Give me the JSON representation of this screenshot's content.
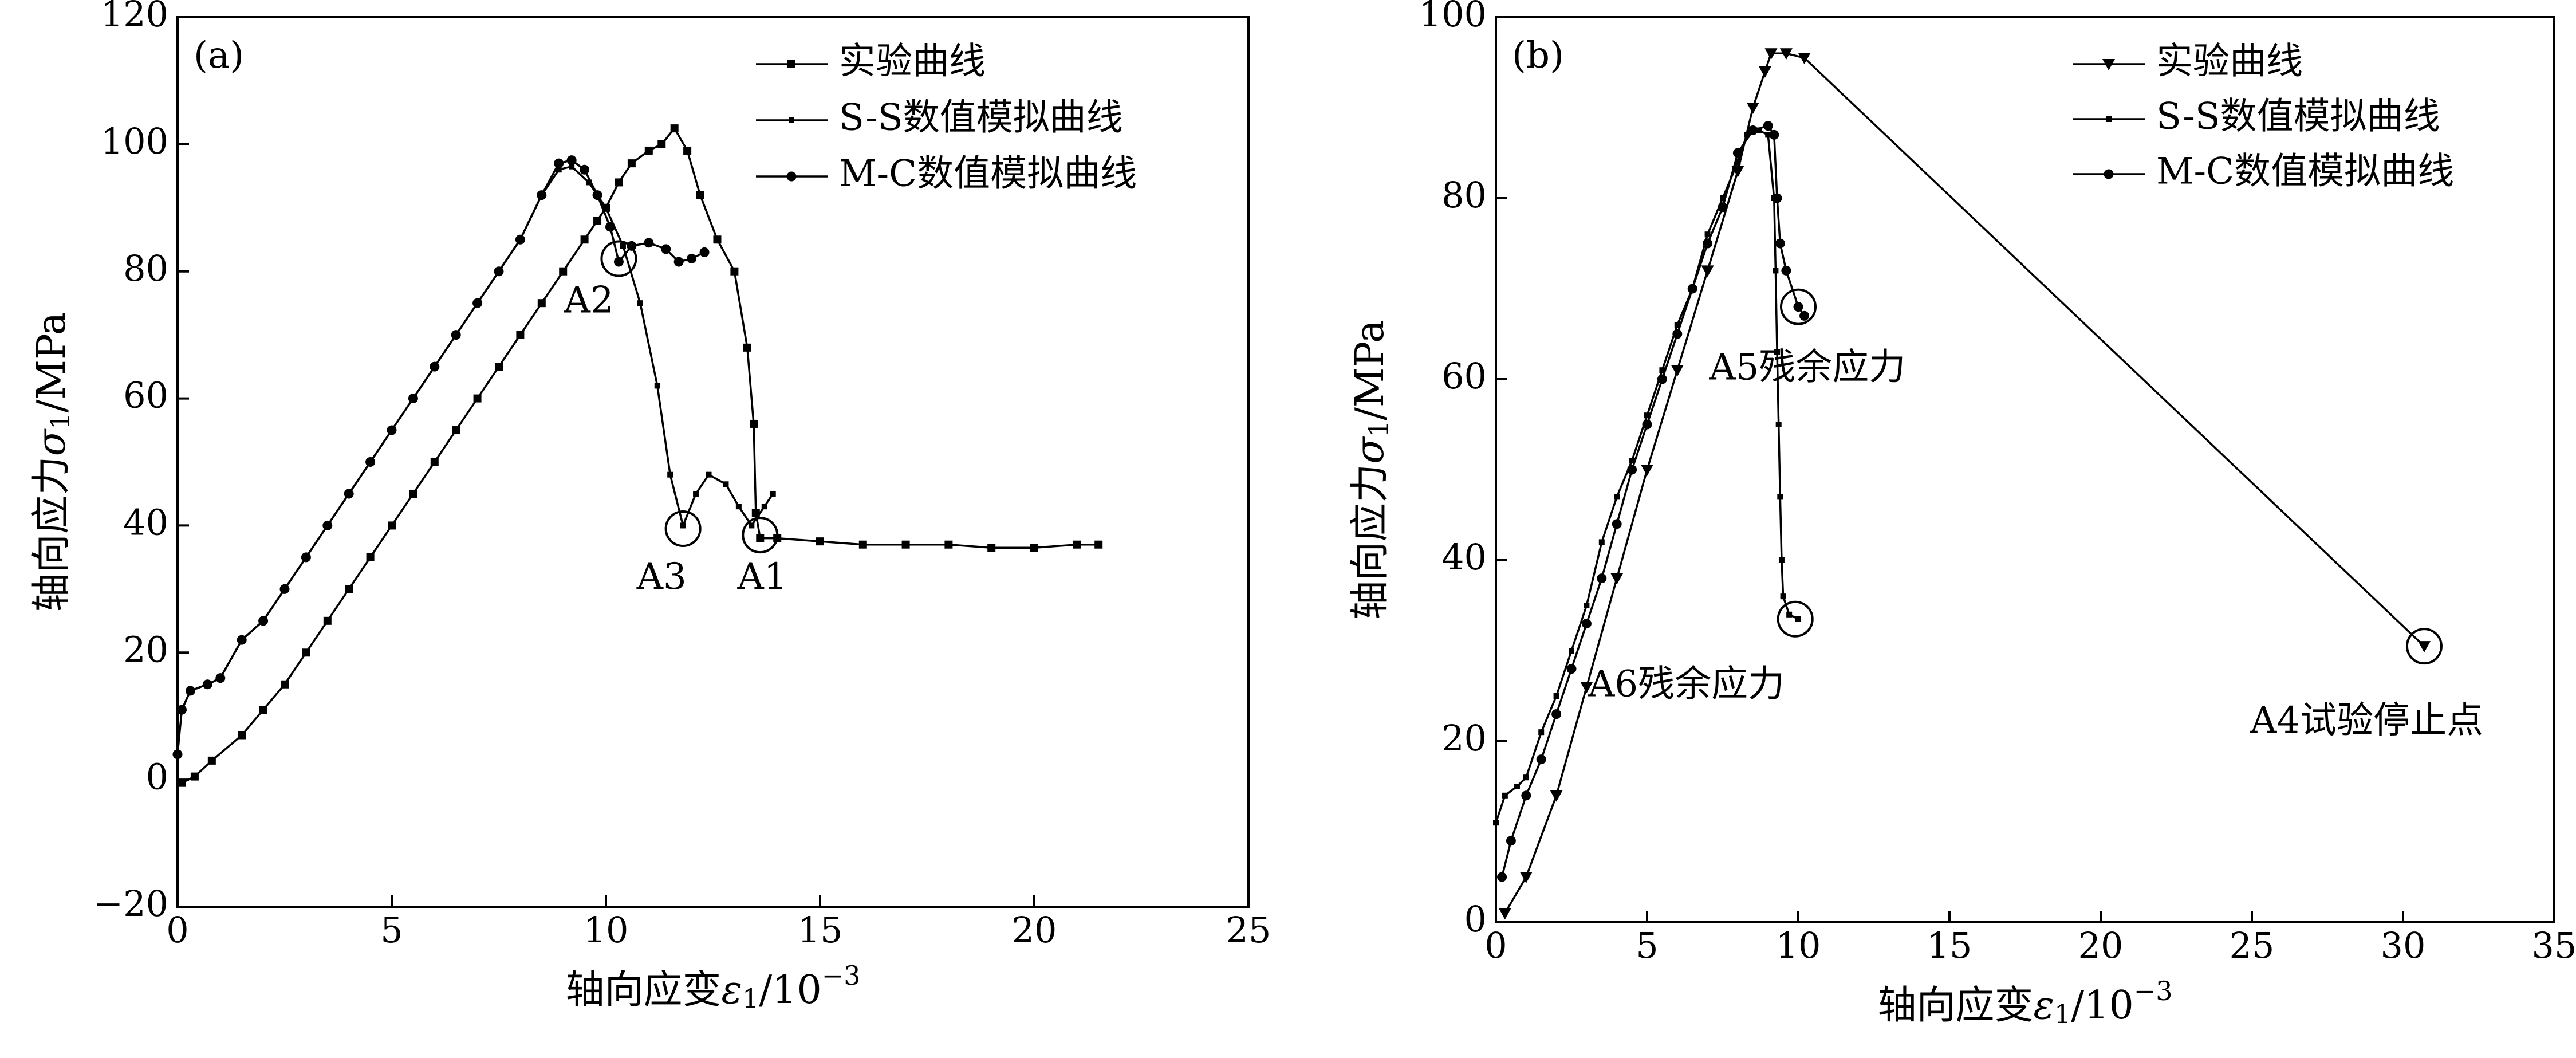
{
  "chart_data": [
    {
      "type": "line",
      "panel_label": "(a)",
      "xlabel": {
        "main": "轴向应变",
        "symbol": "ε",
        "sub": "1",
        "unit": "/10",
        "sup": "−3"
      },
      "ylabel": {
        "main": "轴向应力",
        "symbol": "σ",
        "sub": "1",
        "unit": "/MPa"
      },
      "xlim": [
        0,
        25
      ],
      "ylim": [
        -20,
        120
      ],
      "xticks": [
        0,
        5,
        10,
        15,
        20,
        25
      ],
      "yticks": [
        -20,
        0,
        20,
        40,
        60,
        80,
        100,
        120
      ],
      "legend_position": "top-right",
      "series": [
        {
          "name": "实验曲线",
          "marker": "square",
          "points": [
            [
              0.1,
              -0.5
            ],
            [
              0.4,
              0.5
            ],
            [
              0.8,
              3
            ],
            [
              1.5,
              7
            ],
            [
              2,
              11
            ],
            [
              2.5,
              15
            ],
            [
              3,
              20
            ],
            [
              3.5,
              25
            ],
            [
              4,
              30
            ],
            [
              4.5,
              35
            ],
            [
              5,
              40
            ],
            [
              5.5,
              45
            ],
            [
              6,
              50
            ],
            [
              6.5,
              55
            ],
            [
              7,
              60
            ],
            [
              7.5,
              65
            ],
            [
              8,
              70
            ],
            [
              8.5,
              75
            ],
            [
              9,
              80
            ],
            [
              9.5,
              85
            ],
            [
              9.8,
              88
            ],
            [
              10,
              90
            ],
            [
              10.3,
              94
            ],
            [
              10.6,
              97
            ],
            [
              11,
              99
            ],
            [
              11.3,
              100
            ],
            [
              11.6,
              102.5
            ],
            [
              11.9,
              99
            ],
            [
              12.2,
              92
            ],
            [
              12.6,
              85
            ],
            [
              13,
              80
            ],
            [
              13.3,
              68
            ],
            [
              13.45,
              56
            ],
            [
              13.5,
              42
            ],
            [
              13.6,
              38
            ],
            [
              14,
              38
            ],
            [
              15,
              37.5
            ],
            [
              16,
              37
            ],
            [
              17,
              37
            ],
            [
              18,
              37
            ],
            [
              19,
              36.5
            ],
            [
              20,
              36.5
            ],
            [
              21,
              37
            ],
            [
              21.5,
              37
            ]
          ]
        },
        {
          "name": "S-S数值模拟曲线",
          "marker": "small-square",
          "points": [
            [
              0.1,
              11
            ],
            [
              0.3,
              14
            ],
            [
              0.7,
              15
            ],
            [
              1,
              16
            ],
            [
              1.5,
              22
            ],
            [
              2,
              25
            ],
            [
              2.5,
              30
            ],
            [
              3,
              35
            ],
            [
              3.5,
              40
            ],
            [
              4,
              45
            ],
            [
              4.5,
              50
            ],
            [
              5,
              55
            ],
            [
              5.5,
              60
            ],
            [
              6,
              65
            ],
            [
              6.5,
              70
            ],
            [
              7,
              75
            ],
            [
              7.5,
              80
            ],
            [
              8,
              85
            ],
            [
              8.5,
              92
            ],
            [
              8.9,
              96
            ],
            [
              9.2,
              96.5
            ],
            [
              9.6,
              94
            ],
            [
              10,
              90
            ],
            [
              10.4,
              84
            ],
            [
              10.8,
              75
            ],
            [
              11.2,
              62
            ],
            [
              11.5,
              48
            ],
            [
              11.8,
              40
            ],
            [
              12.1,
              45
            ],
            [
              12.4,
              48
            ],
            [
              12.8,
              46.5
            ],
            [
              13.1,
              43
            ],
            [
              13.4,
              40
            ],
            [
              13.7,
              43
            ],
            [
              13.9,
              45
            ]
          ]
        },
        {
          "name": "M-C数值模拟曲线",
          "marker": "circle",
          "points": [
            [
              0,
              4
            ],
            [
              0.1,
              11
            ],
            [
              0.3,
              14
            ],
            [
              0.7,
              15
            ],
            [
              1,
              16
            ],
            [
              1.5,
              22
            ],
            [
              2,
              25
            ],
            [
              2.5,
              30
            ],
            [
              3,
              35
            ],
            [
              3.5,
              40
            ],
            [
              4,
              45
            ],
            [
              4.5,
              50
            ],
            [
              5,
              55
            ],
            [
              5.5,
              60
            ],
            [
              6,
              65
            ],
            [
              6.5,
              70
            ],
            [
              7,
              75
            ],
            [
              7.5,
              80
            ],
            [
              8,
              85
            ],
            [
              8.5,
              92
            ],
            [
              8.9,
              97
            ],
            [
              9.2,
              97.5
            ],
            [
              9.5,
              96
            ],
            [
              9.8,
              92
            ],
            [
              10.1,
              87
            ],
            [
              10.3,
              81.5
            ],
            [
              10.6,
              84
            ],
            [
              11,
              84.5
            ],
            [
              11.4,
              83.5
            ],
            [
              11.7,
              81.5
            ],
            [
              12,
              82
            ],
            [
              12.3,
              83
            ]
          ]
        }
      ],
      "annotations": [
        {
          "label": "A1",
          "point": [
            13.6,
            38.5
          ],
          "label_at": [
            13.65,
            31.5
          ]
        },
        {
          "label": "A2",
          "point": [
            10.3,
            82
          ],
          "label_at": [
            9.6,
            75
          ]
        },
        {
          "label": "A3",
          "point": [
            11.8,
            39.5
          ],
          "label_at": [
            11.3,
            31.5
          ]
        }
      ]
    },
    {
      "type": "line",
      "panel_label": "(b)",
      "xlabel": {
        "main": "轴向应变",
        "symbol": "ε",
        "sub": "1",
        "unit": "/10",
        "sup": "−3"
      },
      "ylabel": {
        "main": "轴向应力",
        "symbol": "σ",
        "sub": "1",
        "unit": "/MPa"
      },
      "xlim": [
        0,
        35
      ],
      "ylim": [
        0,
        100
      ],
      "xticks": [
        0,
        5,
        10,
        15,
        20,
        25,
        30,
        35
      ],
      "yticks": [
        0,
        20,
        40,
        60,
        80,
        100
      ],
      "legend_position": "top-right",
      "series": [
        {
          "name": "实验曲线",
          "marker": "triangle-down",
          "points": [
            [
              0.3,
              1
            ],
            [
              1,
              5
            ],
            [
              2,
              14
            ],
            [
              3,
              26
            ],
            [
              4,
              38
            ],
            [
              5,
              50
            ],
            [
              6,
              61
            ],
            [
              7,
              72
            ],
            [
              8,
              83
            ],
            [
              8.5,
              90
            ],
            [
              8.9,
              94
            ],
            [
              9.1,
              96
            ],
            [
              9.6,
              96
            ],
            [
              10.2,
              95.5
            ],
            [
              30.7,
              30.5
            ]
          ]
        },
        {
          "name": "S-S数值模拟曲线",
          "marker": "small-square",
          "points": [
            [
              0,
              11
            ],
            [
              0.3,
              14
            ],
            [
              0.7,
              15
            ],
            [
              1,
              16
            ],
            [
              1.5,
              21
            ],
            [
              2,
              25
            ],
            [
              2.5,
              30
            ],
            [
              3,
              35
            ],
            [
              3.5,
              42
            ],
            [
              4,
              47
            ],
            [
              4.5,
              51
            ],
            [
              5,
              56
            ],
            [
              5.5,
              61
            ],
            [
              6,
              66
            ],
            [
              6.5,
              70
            ],
            [
              7,
              76
            ],
            [
              7.5,
              80
            ],
            [
              8,
              84
            ],
            [
              8.3,
              87
            ],
            [
              8.7,
              87.5
            ],
            [
              9,
              87
            ],
            [
              9.2,
              80
            ],
            [
              9.25,
              72
            ],
            [
              9.3,
              63
            ],
            [
              9.35,
              55
            ],
            [
              9.4,
              47
            ],
            [
              9.45,
              40
            ],
            [
              9.5,
              36
            ],
            [
              9.7,
              34
            ],
            [
              10,
              33.5
            ]
          ]
        },
        {
          "name": "M-C数值模拟曲线",
          "marker": "circle",
          "points": [
            [
              0.2,
              5
            ],
            [
              0.5,
              9
            ],
            [
              1,
              14
            ],
            [
              1.5,
              18
            ],
            [
              2,
              23
            ],
            [
              2.5,
              28
            ],
            [
              3,
              33
            ],
            [
              3.5,
              38
            ],
            [
              4,
              44
            ],
            [
              4.5,
              50
            ],
            [
              5,
              55
            ],
            [
              5.5,
              60
            ],
            [
              6,
              65
            ],
            [
              6.5,
              70
            ],
            [
              7,
              75
            ],
            [
              7.5,
              79
            ],
            [
              8,
              85
            ],
            [
              8.5,
              87.5
            ],
            [
              9,
              88
            ],
            [
              9.2,
              87
            ],
            [
              9.3,
              80
            ],
            [
              9.4,
              75
            ],
            [
              9.6,
              72
            ],
            [
              10,
              68
            ],
            [
              10.2,
              67
            ]
          ]
        }
      ],
      "annotations": [
        {
          "label": "A4试验停止点",
          "point": [
            30.7,
            30.5
          ],
          "label_at": [
            28.8,
            22
          ]
        },
        {
          "label": "A5残余应力",
          "point": [
            10,
            68
          ],
          "label_at": [
            10.3,
            61
          ]
        },
        {
          "label": "A6残余应力",
          "point": [
            9.9,
            33.5
          ],
          "label_at": [
            6.3,
            26
          ]
        }
      ]
    }
  ]
}
